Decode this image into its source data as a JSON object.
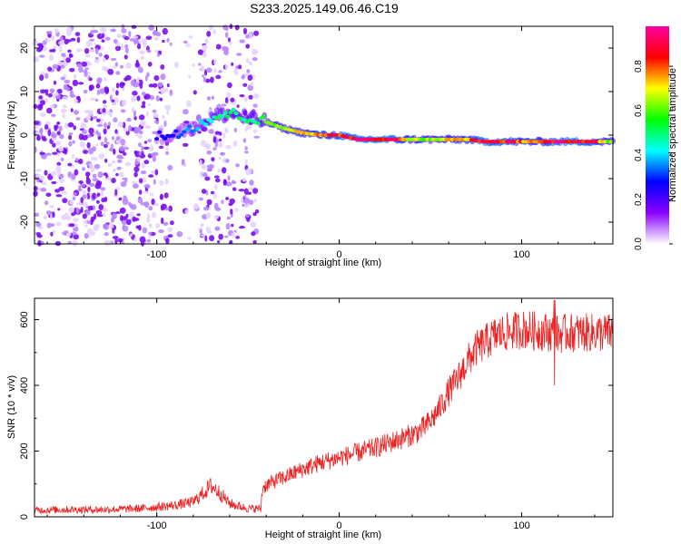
{
  "figure_title": "S233.2025.149.06.46.C19",
  "chart_data": [
    {
      "type": "heatmap",
      "title": "",
      "xlabel": "Height of straight line (km)",
      "ylabel": "Frequency (Hz)",
      "xlim": [
        -167,
        150
      ],
      "ylim": [
        -25,
        25
      ],
      "x_ticks": [
        -100,
        0,
        100
      ],
      "y_ticks": [
        -20,
        -10,
        0,
        10,
        20
      ],
      "colorbar": {
        "label": "Normalized spectral amplitude",
        "range": [
          0.0,
          0.98
        ],
        "ticks": [
          0.0,
          0.2,
          0.4,
          0.6,
          0.8
        ],
        "colormap": [
          "#ffffff",
          "#8a00ff",
          "#0000ff",
          "#00ffff",
          "#00ff00",
          "#ffff00",
          "#ff0000",
          "#ff00a0"
        ]
      },
      "ridge": {
        "x": [
          -100,
          -90,
          -80,
          -70,
          -60,
          -50,
          -40,
          -30,
          -20,
          -10,
          0,
          10,
          20,
          30,
          40,
          50,
          60,
          70,
          80,
          90,
          100,
          110,
          120,
          130,
          140,
          150
        ],
        "frequency": [
          -0.5,
          0.5,
          2,
          4,
          5,
          4,
          3,
          1.5,
          0.5,
          0,
          0,
          -1,
          -1,
          -1,
          -1,
          -1,
          -1,
          -1,
          -1.5,
          -1.5,
          -1.5,
          -1.5,
          -1.5,
          -1.5,
          -1.5,
          -1.5
        ],
        "amplitude": [
          0.25,
          0.3,
          0.4,
          0.5,
          0.55,
          0.5,
          0.6,
          0.7,
          0.8,
          0.85,
          0.9,
          0.95,
          0.95,
          0.95,
          0.7,
          0.65,
          0.75,
          0.8,
          0.95,
          0.9,
          0.85,
          0.8,
          0.95,
          0.95,
          0.9,
          0.6
        ]
      },
      "noise_region_x": [
        -167,
        -45
      ],
      "noise_amplitude_range": [
        0.0,
        0.25
      ]
    },
    {
      "type": "line",
      "title": "",
      "xlabel": "Height of straight line (km)",
      "ylabel": "SNR (10 * v/v)",
      "xlim": [
        -167,
        150
      ],
      "ylim": [
        0,
        665
      ],
      "x_ticks": [
        -100,
        0,
        100
      ],
      "y_ticks": [
        0,
        200,
        400,
        600
      ],
      "color": "#ee2222",
      "x": [
        -167,
        -150,
        -130,
        -110,
        -90,
        -80,
        -75,
        -70,
        -65,
        -60,
        -50,
        -43,
        -42,
        -35,
        -30,
        -20,
        -10,
        0,
        10,
        20,
        30,
        40,
        45,
        50,
        55,
        60,
        65,
        70,
        75,
        80,
        85,
        90,
        100,
        110,
        118,
        120,
        125,
        130,
        140,
        150
      ],
      "y": [
        20,
        22,
        22,
        25,
        35,
        45,
        70,
        95,
        70,
        40,
        25,
        25,
        90,
        110,
        120,
        145,
        165,
        180,
        195,
        210,
        230,
        250,
        265,
        290,
        330,
        380,
        420,
        470,
        510,
        530,
        550,
        560,
        570,
        565,
        560,
        555,
        560,
        560,
        560,
        560
      ]
    }
  ]
}
